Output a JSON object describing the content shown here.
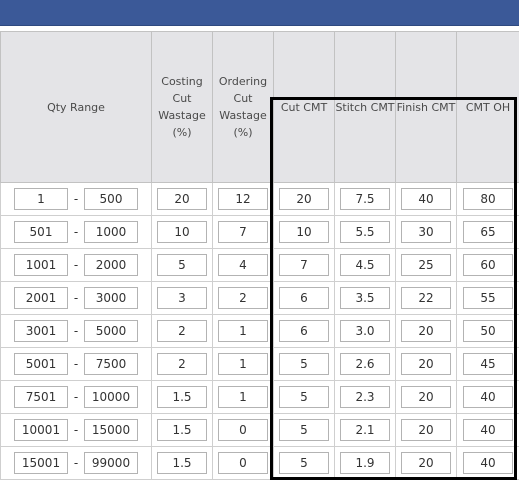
{
  "headers": {
    "qty_range": "Qty Range",
    "costing_cut_wastage": [
      "Costing",
      "Cut",
      "Wastage",
      "(%)"
    ],
    "ordering_cut_wastage": [
      "Ordering",
      "Cut",
      "Wastage",
      "(%)"
    ],
    "cut_cmt": "Cut CMT",
    "stitch_cmt": "Stitch CMT",
    "finish_cmt": "Finish CMT",
    "cmt_oh": "CMT OH"
  },
  "separator": "-",
  "rows": [
    {
      "from": "1",
      "to": "500",
      "costing": "20",
      "ordering": "12",
      "cut": "20",
      "stitch": "7.5",
      "finish": "40",
      "oh": "80"
    },
    {
      "from": "501",
      "to": "1000",
      "costing": "10",
      "ordering": "7",
      "cut": "10",
      "stitch": "5.5",
      "finish": "30",
      "oh": "65"
    },
    {
      "from": "1001",
      "to": "2000",
      "costing": "5",
      "ordering": "4",
      "cut": "7",
      "stitch": "4.5",
      "finish": "25",
      "oh": "60"
    },
    {
      "from": "2001",
      "to": "3000",
      "costing": "3",
      "ordering": "2",
      "cut": "6",
      "stitch": "3.5",
      "finish": "22",
      "oh": "55"
    },
    {
      "from": "3001",
      "to": "5000",
      "costing": "2",
      "ordering": "1",
      "cut": "6",
      "stitch": "3.0",
      "finish": "20",
      "oh": "50"
    },
    {
      "from": "5001",
      "to": "7500",
      "costing": "2",
      "ordering": "1",
      "cut": "5",
      "stitch": "2.6",
      "finish": "20",
      "oh": "45"
    },
    {
      "from": "7501",
      "to": "10000",
      "costing": "1.5",
      "ordering": "1",
      "cut": "5",
      "stitch": "2.3",
      "finish": "20",
      "oh": "40"
    },
    {
      "from": "10001",
      "to": "15000",
      "costing": "1.5",
      "ordering": "0",
      "cut": "5",
      "stitch": "2.1",
      "finish": "20",
      "oh": "40"
    },
    {
      "from": "15001",
      "to": "99000",
      "costing": "1.5",
      "ordering": "0",
      "cut": "5",
      "stitch": "1.9",
      "finish": "20",
      "oh": "40"
    }
  ],
  "colors": {
    "topbar": "#3b5998",
    "header_bg": "#e4e4e7",
    "highlight_border": "#000000"
  }
}
